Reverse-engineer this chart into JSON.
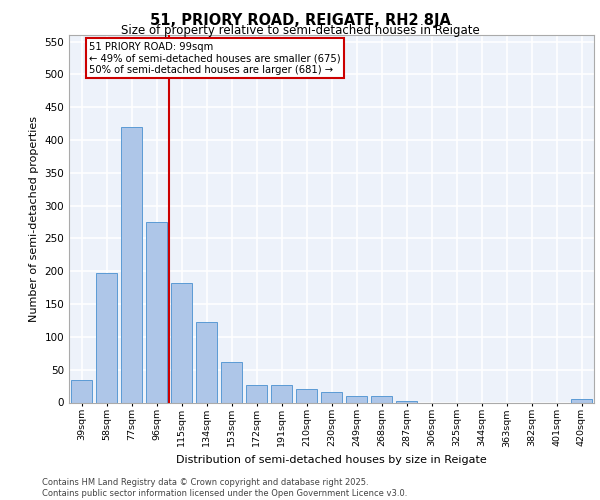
{
  "title": "51, PRIORY ROAD, REIGATE, RH2 8JA",
  "subtitle": "Size of property relative to semi-detached houses in Reigate",
  "xlabel": "Distribution of semi-detached houses by size in Reigate",
  "ylabel": "Number of semi-detached properties",
  "categories": [
    "39sqm",
    "58sqm",
    "77sqm",
    "96sqm",
    "115sqm",
    "134sqm",
    "153sqm",
    "172sqm",
    "191sqm",
    "210sqm",
    "230sqm",
    "249sqm",
    "268sqm",
    "287sqm",
    "306sqm",
    "325sqm",
    "344sqm",
    "363sqm",
    "382sqm",
    "401sqm",
    "420sqm"
  ],
  "values": [
    35,
    198,
    420,
    275,
    182,
    122,
    62,
    26,
    26,
    20,
    16,
    10,
    10,
    2,
    0,
    0,
    0,
    0,
    0,
    0,
    5
  ],
  "bar_color": "#aec6e8",
  "bar_edge_color": "#5b9bd5",
  "vline_x_index": 3,
  "vline_color": "#cc0000",
  "annotation_text": "51 PRIORY ROAD: 99sqm\n← 49% of semi-detached houses are smaller (675)\n50% of semi-detached houses are larger (681) →",
  "annotation_box_color": "#ffffff",
  "annotation_box_edge": "#cc0000",
  "ylim": [
    0,
    560
  ],
  "yticks": [
    0,
    50,
    100,
    150,
    200,
    250,
    300,
    350,
    400,
    450,
    500,
    550
  ],
  "footer_line1": "Contains HM Land Registry data © Crown copyright and database right 2025.",
  "footer_line2": "Contains public sector information licensed under the Open Government Licence v3.0.",
  "bg_color": "#edf2fa",
  "grid_color": "#ffffff"
}
